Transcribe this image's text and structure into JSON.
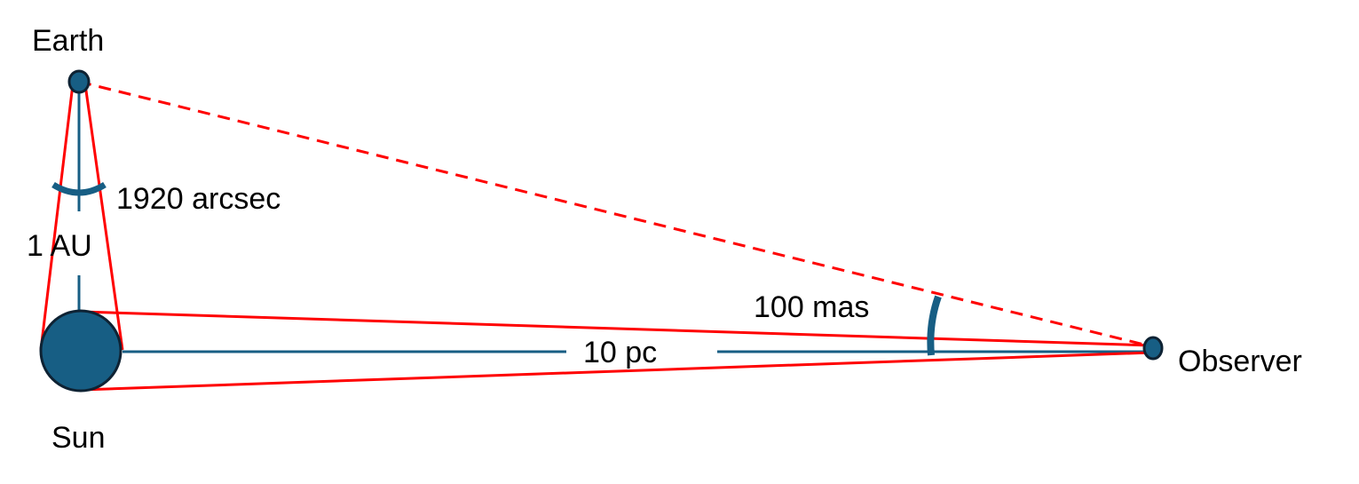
{
  "labels": {
    "earth": "Earth",
    "sun": "Sun",
    "observer": "Observer",
    "earth_sun_distance": "1 AU",
    "sun_observer_distance": "10 pc",
    "angle_at_earth": "1920 arcsec",
    "angle_at_observer": "100 mas"
  },
  "colors": {
    "body_fill": "#175e84",
    "body_stroke": "#0e2233",
    "baseline": "#175e84",
    "sight_line": "#ff0000",
    "angle_arc": "#175e84",
    "text": "#000000"
  }
}
